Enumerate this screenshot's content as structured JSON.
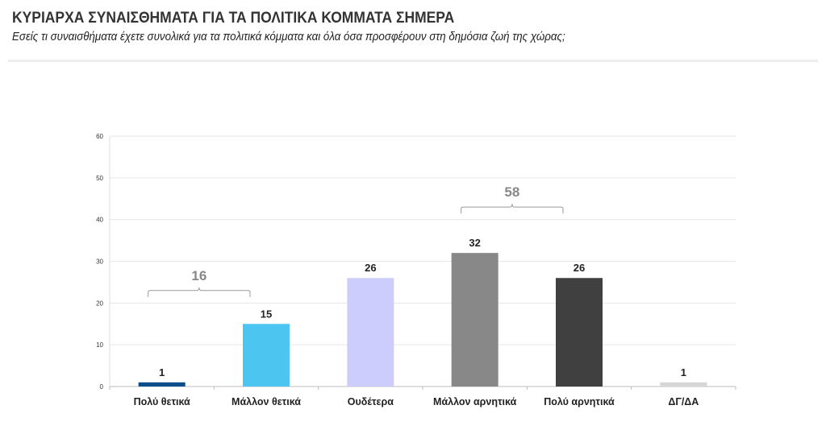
{
  "chart_data": {
    "type": "bar",
    "title": "ΚΥΡΙΑΡΧΑ ΣΥΝΑΙΣΘΗΜΑΤΑ ΓΙΑ ΤΑ ΠΟΛΙΤΙΚΑ ΚΟΜΜΑΤΑ ΣΗΜΕΡΑ",
    "subtitle": "Εσείς τι συναισθήματα έχετε συνολικά για τα πολιτικά κόμματα και όλα όσα προσφέρουν στη δημόσια ζωή της χώρας;",
    "categories": [
      "Πολύ θετικά",
      "Μάλλον θετικά",
      "Ουδέτερα",
      "Μάλλον αρνητικά",
      "Πολύ αρνητικά",
      "ΔΓ/ΔΑ"
    ],
    "values": [
      1,
      15,
      26,
      32,
      26,
      1
    ],
    "colors": [
      "#0a4f8c",
      "#4cc6f0",
      "#cccdfd",
      "#888888",
      "#404040",
      "#d6d6d6"
    ],
    "ylim": [
      0,
      60
    ],
    "yticks": [
      "0",
      "10",
      "20",
      "30",
      "40",
      "50",
      "60"
    ],
    "grid": true,
    "groups": [
      {
        "label": "16",
        "from": 0,
        "to": 1,
        "level": 23
      },
      {
        "label": "58",
        "from": 3,
        "to": 4,
        "level": 43
      }
    ]
  }
}
